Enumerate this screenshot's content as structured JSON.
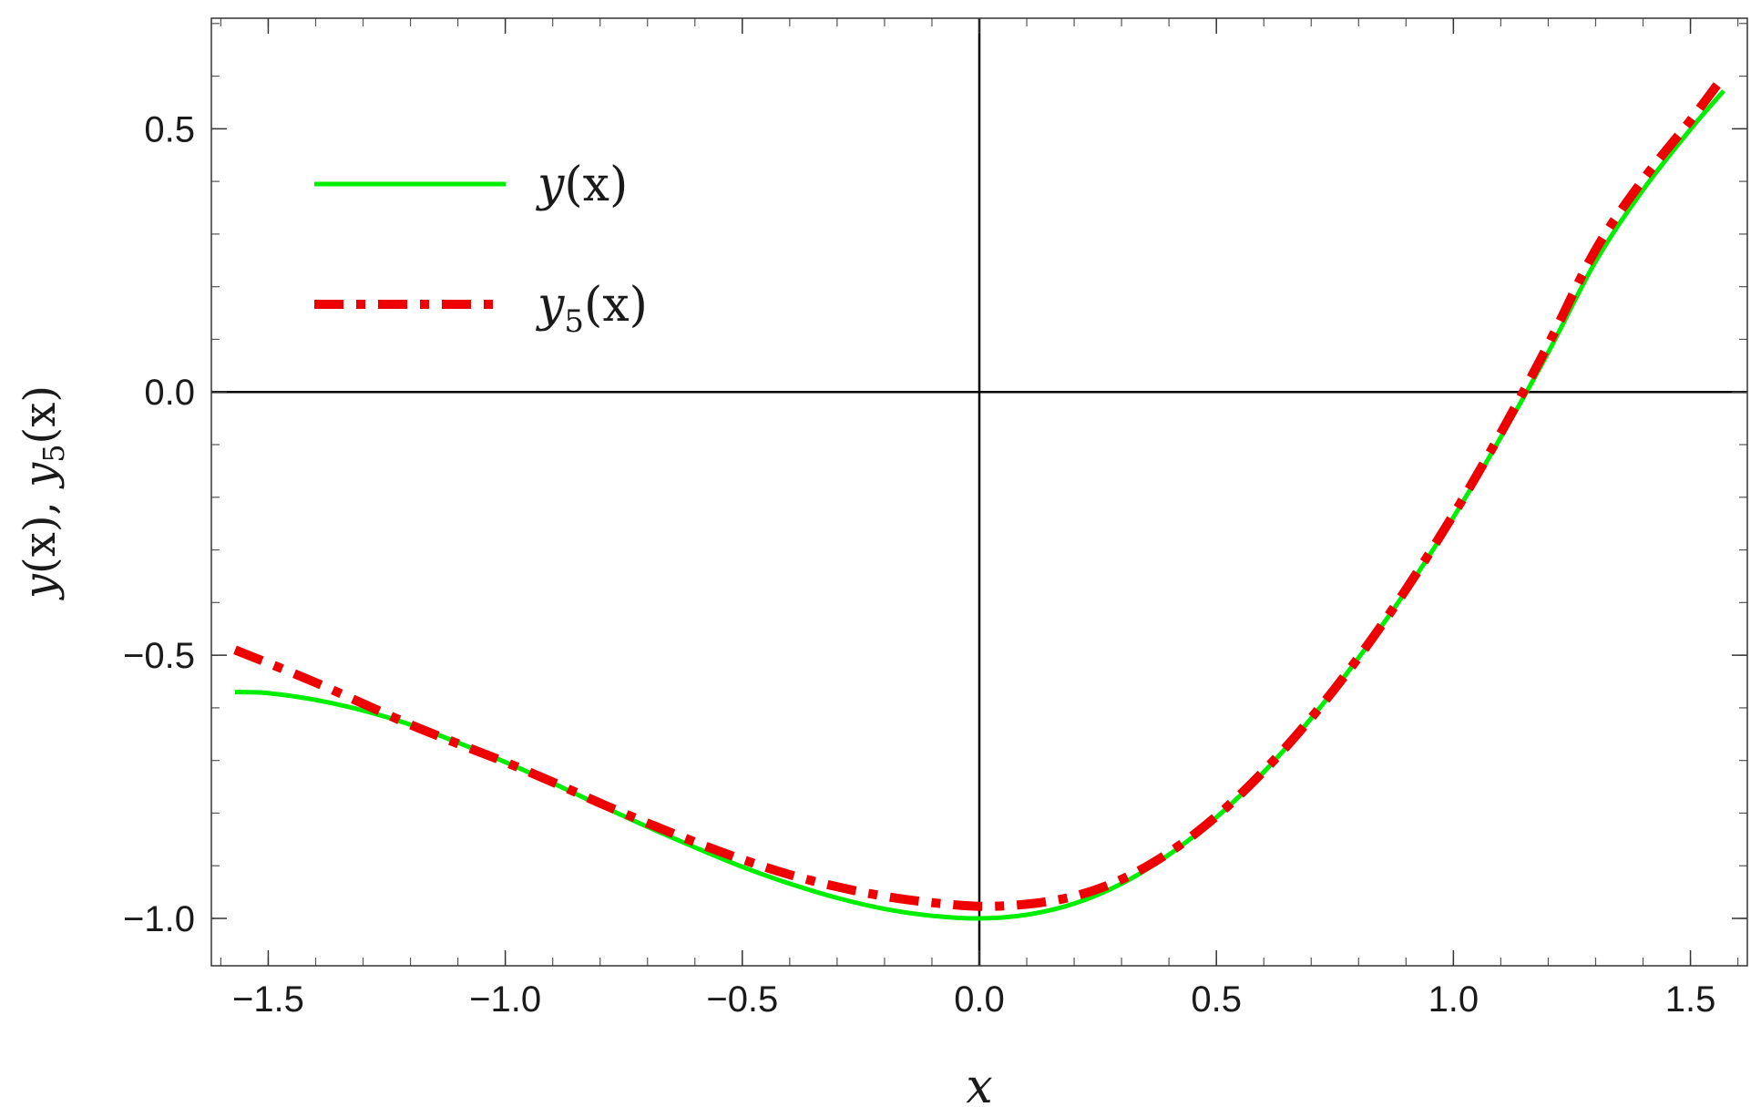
{
  "chart_data": {
    "type": "line",
    "xlabel": "x",
    "ylabel": "y(x), y5(x)",
    "ylabel_parts": {
      "a": "y",
      "b": "(x), ",
      "c": "y",
      "sub": "5",
      "d": "(x)"
    },
    "xlim": [
      -1.62,
      1.62
    ],
    "ylim": [
      -1.09,
      0.71
    ],
    "x_ticks": [
      -1.5,
      -1.0,
      -0.5,
      0.0,
      0.5,
      1.0,
      1.5
    ],
    "x_tick_labels": [
      "−1.5",
      "−1.0",
      "−0.5",
      "0.0",
      "0.5",
      "1.0",
      "1.5"
    ],
    "y_ticks": [
      -1.0,
      -0.5,
      0.0,
      0.5
    ],
    "y_tick_labels": [
      "−1.0",
      "−0.5",
      "0.0",
      "0.5"
    ],
    "x_minor_step": 0.1,
    "y_minor_step": 0.1,
    "axes_lines_at_zero": true,
    "grid": false,
    "legend_position": "top-left",
    "series": [
      {
        "name": "y(x)",
        "legend_parts": {
          "base": "y",
          "sub": "",
          "rest": "(x)"
        },
        "color": "#00ee00",
        "style": "solid",
        "x": [
          -1.57,
          -1.5,
          -1.4,
          -1.3,
          -1.2,
          -1.1,
          -1.0,
          -0.9,
          -0.8,
          -0.7,
          -0.6,
          -0.5,
          -0.4,
          -0.3,
          -0.2,
          -0.1,
          0.0,
          0.1,
          0.2,
          0.3,
          0.4,
          0.5,
          0.6,
          0.7,
          0.8,
          0.9,
          1.0,
          1.1,
          1.2,
          1.3,
          1.4,
          1.5,
          1.57
        ],
        "y": [
          -0.57,
          -0.572,
          -0.585,
          -0.605,
          -0.632,
          -0.666,
          -0.703,
          -0.743,
          -0.785,
          -0.826,
          -0.865,
          -0.902,
          -0.934,
          -0.961,
          -0.982,
          -0.995,
          -1.0,
          -0.993,
          -0.972,
          -0.934,
          -0.879,
          -0.808,
          -0.722,
          -0.62,
          -0.505,
          -0.378,
          -0.238,
          -0.086,
          0.075,
          0.248,
          0.384,
          0.499,
          0.572
        ]
      },
      {
        "name": "y5(x)",
        "legend_parts": {
          "base": "y",
          "sub": "5",
          "rest": "(x)"
        },
        "color": "#ee0000",
        "style": "dashdot",
        "x": [
          -1.57,
          -1.5,
          -1.4,
          -1.3,
          -1.2,
          -1.1,
          -1.0,
          -0.9,
          -0.8,
          -0.7,
          -0.6,
          -0.5,
          -0.4,
          -0.3,
          -0.2,
          -0.1,
          0.0,
          0.1,
          0.2,
          0.3,
          0.4,
          0.5,
          0.6,
          0.7,
          0.8,
          0.9,
          1.0,
          1.1,
          1.2,
          1.3,
          1.4,
          1.5,
          1.57
        ],
        "y": [
          -0.49,
          -0.515,
          -0.552,
          -0.592,
          -0.632,
          -0.668,
          -0.703,
          -0.741,
          -0.781,
          -0.819,
          -0.855,
          -0.888,
          -0.917,
          -0.94,
          -0.958,
          -0.97,
          -0.977,
          -0.973,
          -0.958,
          -0.926,
          -0.875,
          -0.806,
          -0.72,
          -0.619,
          -0.504,
          -0.375,
          -0.233,
          -0.078,
          0.09,
          0.27,
          0.403,
          0.516,
          0.6
        ]
      }
    ]
  }
}
